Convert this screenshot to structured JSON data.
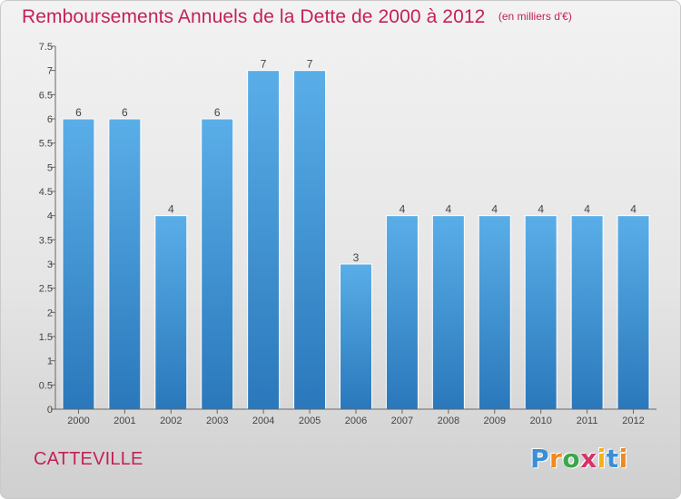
{
  "header": {
    "title": "Remboursements Annuels de la Dette de 2000 à 2012",
    "unit": "(en milliers d'€)"
  },
  "footer": {
    "commune": "CATTEVILLE",
    "logo_letters": [
      "P",
      "r",
      "o",
      "x",
      "i",
      "t",
      "i"
    ],
    "logo_colors": [
      "#3a8fd6",
      "#f08a1c",
      "#3aa84a",
      "#d8336a",
      "#f2b21a"
    ]
  },
  "colors": {
    "bar_top": "#5aaee8",
    "bar_bottom": "#2a78bb",
    "title": "#c4205a",
    "axis": "#666666",
    "gridline": "#888888"
  },
  "chart_data": {
    "type": "bar",
    "title": "Remboursements Annuels de la Dette de 2000 à 2012",
    "subtitle": "(en milliers d'€)",
    "xlabel": "",
    "ylabel": "",
    "categories": [
      "2000",
      "2001",
      "2002",
      "2003",
      "2004",
      "2005",
      "2006",
      "2007",
      "2008",
      "2009",
      "2010",
      "2011",
      "2012"
    ],
    "values": [
      6,
      6,
      4,
      6,
      7,
      7,
      3,
      4,
      4,
      4,
      4,
      4,
      4
    ],
    "data_labels": [
      "6",
      "6",
      "4",
      "6",
      "7",
      "7",
      "3",
      "4",
      "4",
      "4",
      "4",
      "4",
      "4"
    ],
    "ylim": [
      0,
      7.5
    ],
    "yticks": [
      0,
      0.5,
      1,
      1.5,
      2,
      2.5,
      3,
      3.5,
      4,
      4.5,
      5,
      5.5,
      6,
      6.5,
      7,
      7.5
    ],
    "ytick_labels": [
      "0",
      "0.5",
      "1",
      "1.5",
      "2",
      "2.5",
      "3",
      "3.5",
      "4",
      "4.5",
      "5",
      "5.5",
      "6",
      "6.5",
      "7",
      "7.5"
    ],
    "grid": false,
    "legend": "none"
  }
}
